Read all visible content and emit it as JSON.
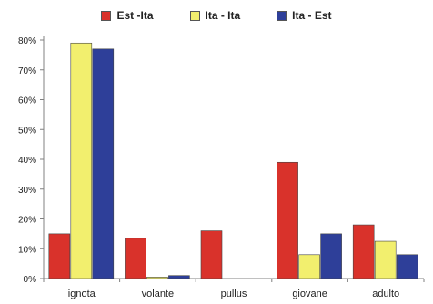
{
  "chart_data": {
    "type": "bar",
    "categories": [
      "ignota",
      "volante",
      "pullus",
      "giovane",
      "adulto"
    ],
    "series": [
      {
        "name": "Est -Ita",
        "color": "#d9322b",
        "values": [
          15,
          13.5,
          16,
          39,
          18
        ]
      },
      {
        "name": "Ita - Ita",
        "color": "#f2ef6e",
        "values": [
          79,
          0.5,
          0,
          8,
          12.5
        ]
      },
      {
        "name": "Ita - Est",
        "color": "#2e3f99",
        "values": [
          77,
          1,
          0,
          15,
          8
        ]
      }
    ],
    "y_ticks": [
      "0%",
      "10%",
      "20%",
      "30%",
      "40%",
      "50%",
      "60%",
      "70%",
      "80%"
    ],
    "ylim": [
      0,
      80
    ],
    "legend_position": "top-center",
    "grid": false
  }
}
